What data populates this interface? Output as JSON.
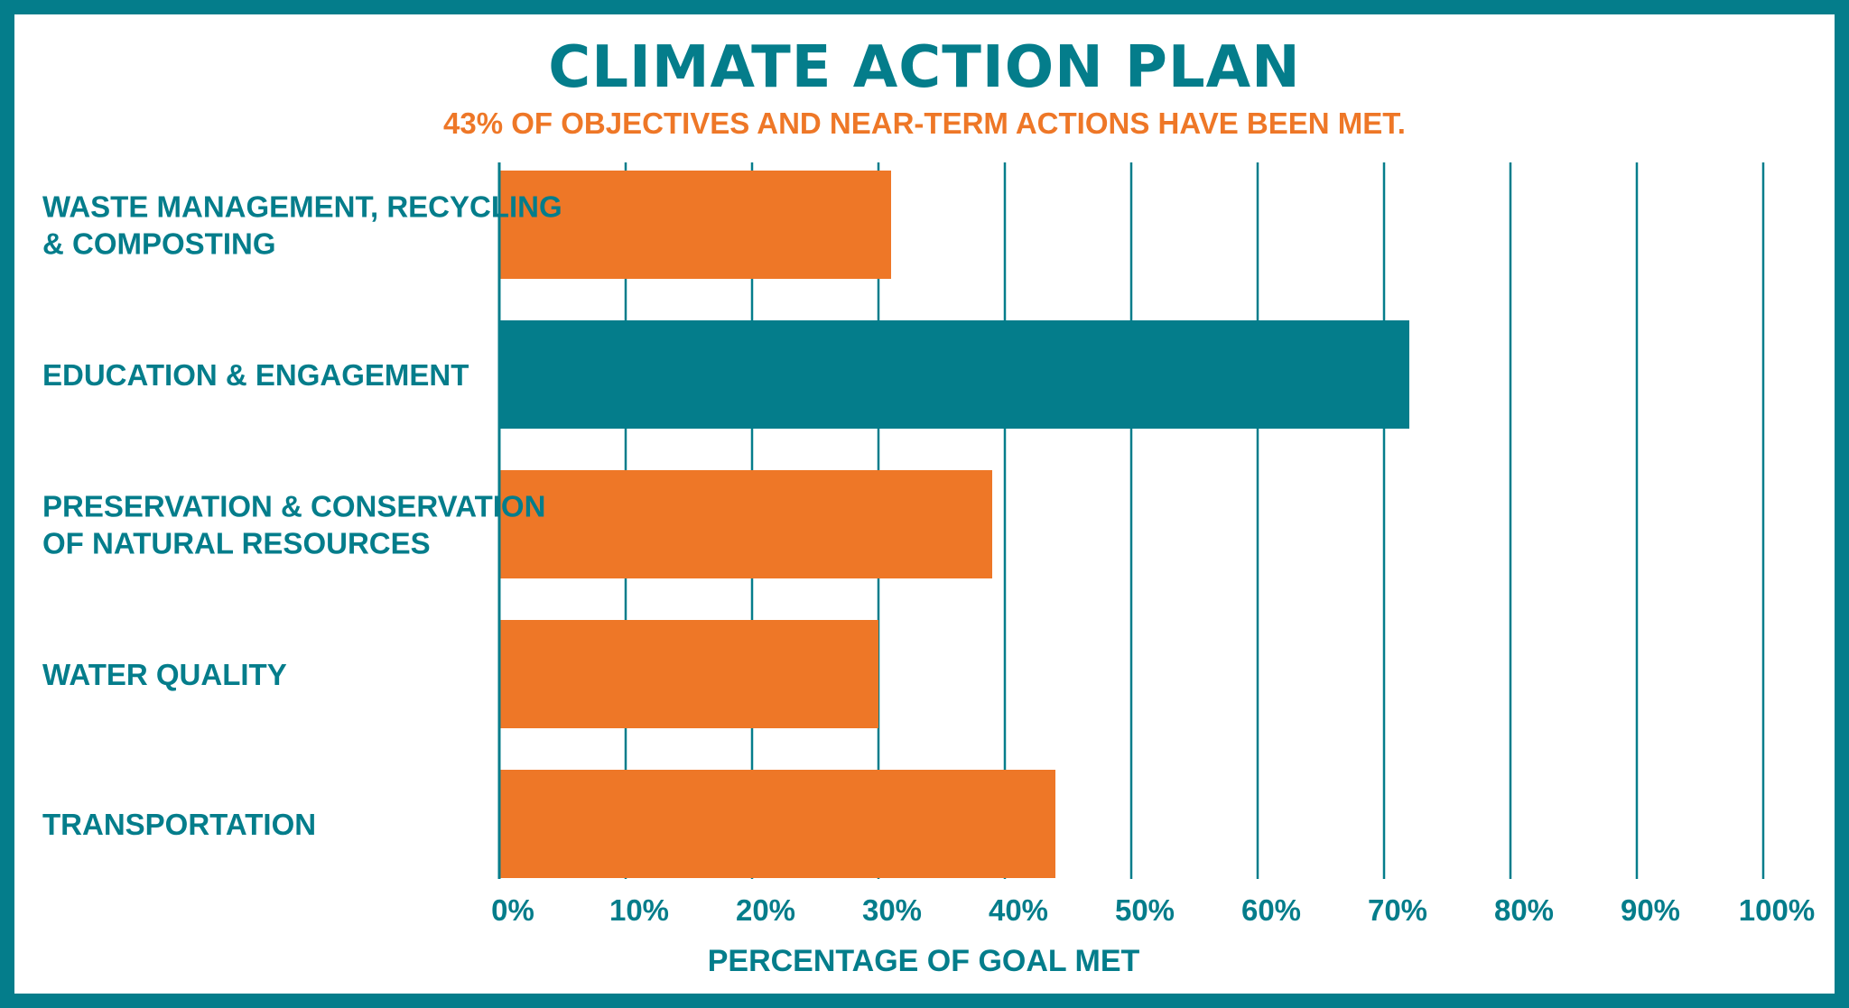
{
  "title": "CLIMATE ACTION PLAN",
  "subtitle": "43% OF OBJECTIVES AND NEAR-TERM ACTIONS HAVE BEEN MET.",
  "colors": {
    "primary": "#047d8b",
    "accent": "#ee7727",
    "border": "#047d8b"
  },
  "chart_data": {
    "type": "bar",
    "orientation": "horizontal",
    "xlabel": "PERCENTAGE OF GOAL MET",
    "xlim": [
      0,
      100
    ],
    "grid": true,
    "ticks": [
      "0%",
      "10%",
      "20%",
      "30%",
      "40%",
      "50%",
      "60%",
      "70%",
      "80%",
      "90%",
      "100%"
    ],
    "categories": [
      [
        "WASTE MANAGEMENT, RECYCLING",
        "& COMPOSTING"
      ],
      [
        "EDUCATION & ENGAGEMENT"
      ],
      [
        "PRESERVATION & CONSERVATION",
        "OF NATURAL RESOURCES"
      ],
      [
        "WATER QUALITY"
      ],
      [
        "TRANSPORTATION"
      ]
    ],
    "values": [
      31,
      72,
      39,
      30,
      44
    ],
    "bar_colors": [
      "#ee7727",
      "#047d8b",
      "#ee7727",
      "#ee7727",
      "#ee7727"
    ]
  }
}
